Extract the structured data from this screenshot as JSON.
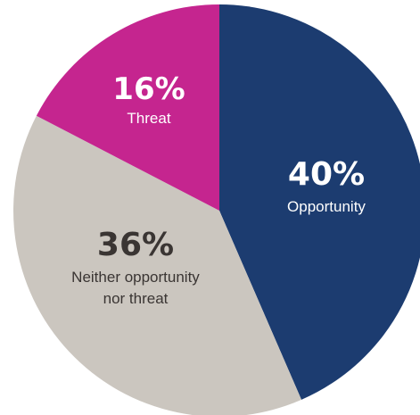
{
  "chart_data": {
    "type": "pie",
    "start": "12 o'clock, clockwise",
    "slices": [
      {
        "label": "Opportunity",
        "value": 40,
        "value_text": "40%",
        "color": "#1c3c70",
        "text_color": "#ffffff"
      },
      {
        "label": "Neither opportunity nor threat",
        "label_lines": [
          "Neither opportunity",
          "nor threat"
        ],
        "value": 36,
        "value_text": "36%",
        "color": "#cbc6bf",
        "text_color": "#3a3533"
      },
      {
        "label": "Threat",
        "value": 16,
        "value_text": "16%",
        "color": "#c5258f",
        "text_color": "#ffffff"
      }
    ]
  }
}
